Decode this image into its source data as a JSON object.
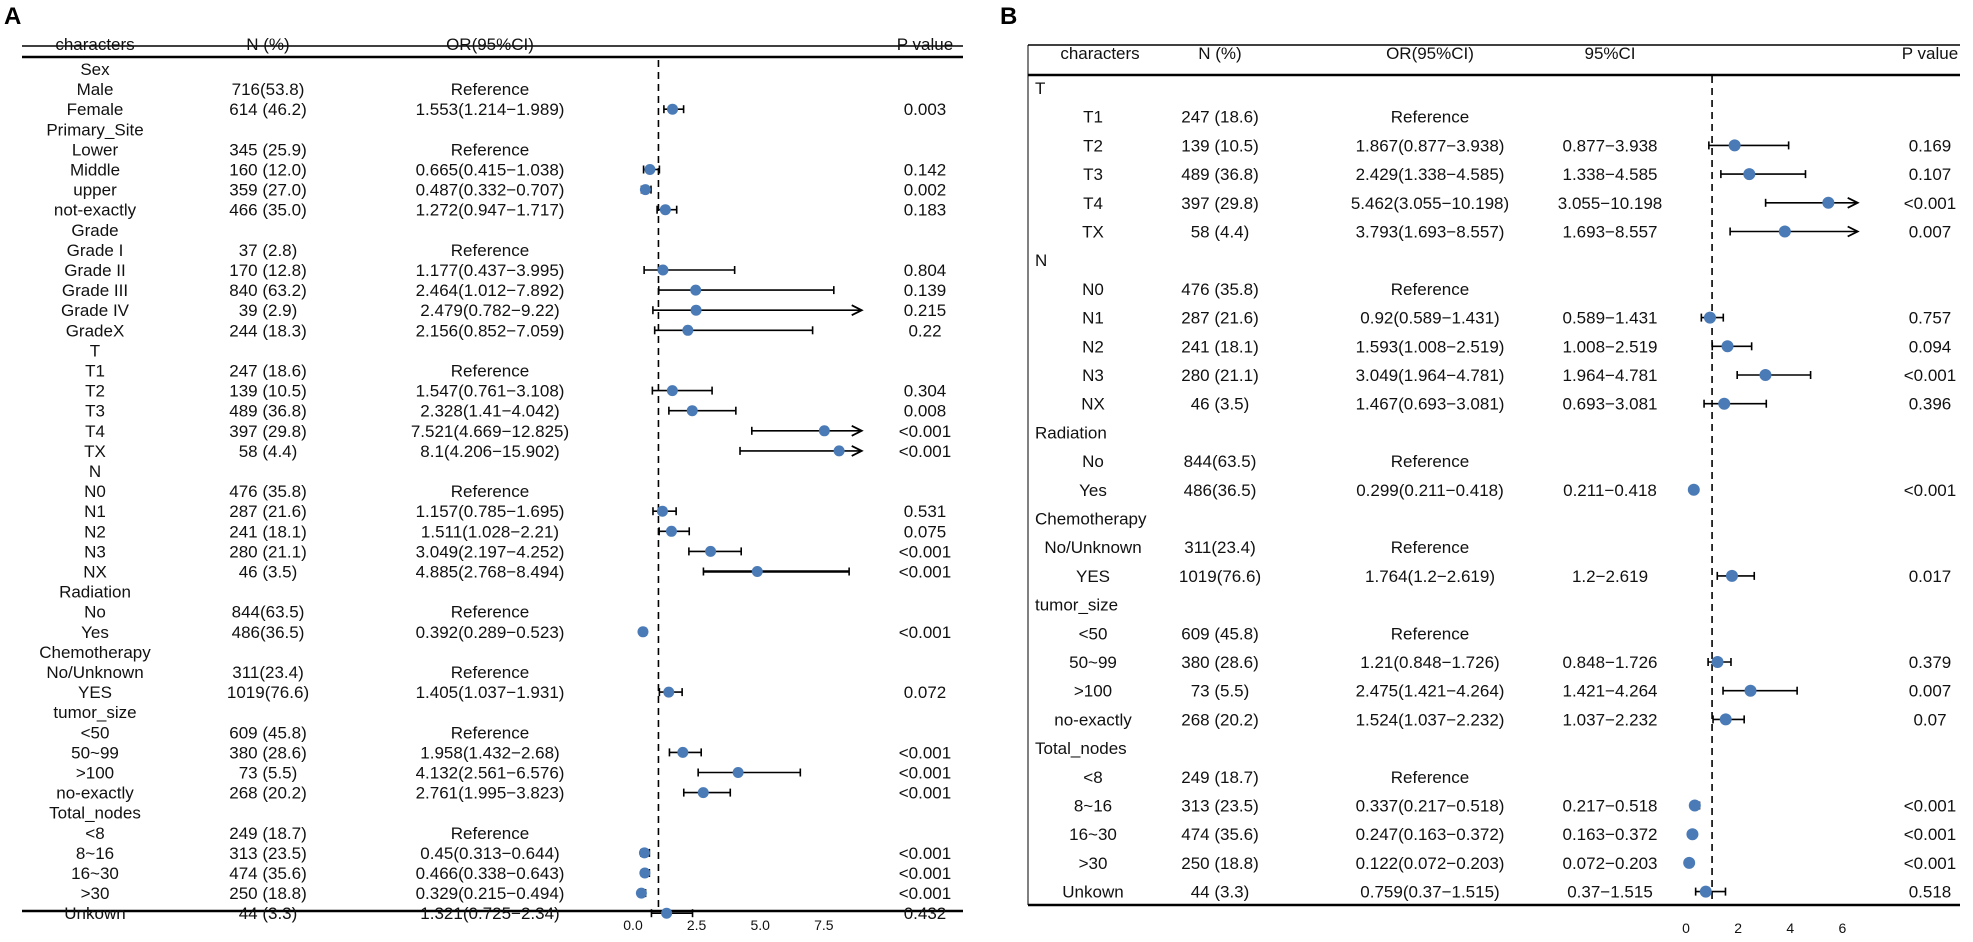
{
  "panels": [
    {
      "label": "A",
      "headers": [
        "characters",
        "N (%)",
        "OR(95%CI)",
        "P value"
      ],
      "axis_ticks": [
        "0.0",
        "2.5",
        "5.0",
        "7.5"
      ]
    },
    {
      "label": "B",
      "headers": [
        "characters",
        "N (%)",
        "OR(95%CI)",
        "95%CI",
        "P value"
      ],
      "axis_ticks": [
        "0",
        "2",
        "4",
        "6"
      ]
    }
  ],
  "chart_data": [
    {
      "type": "forest",
      "panel": "A",
      "xlim": [
        0,
        9
      ],
      "reference_line": 1,
      "rows": [
        {
          "label": "Sex",
          "group": true
        },
        {
          "label": "Male",
          "n": "716(53.8)",
          "or_text": "Reference"
        },
        {
          "label": "Female",
          "n": "614 (46.2)",
          "or_text": "1.553(1.214−1.989)",
          "or": 1.553,
          "lo": 1.214,
          "hi": 1.989,
          "p": "0.003"
        },
        {
          "label": "Primary_Site",
          "group": true
        },
        {
          "label": "Lower",
          "n": "345 (25.9)",
          "or_text": "Reference"
        },
        {
          "label": "Middle",
          "n": "160 (12.0)",
          "or_text": "0.665(0.415−1.038)",
          "or": 0.665,
          "lo": 0.415,
          "hi": 1.038,
          "p": "0.142"
        },
        {
          "label": "upper",
          "n": "359 (27.0)",
          "or_text": "0.487(0.332−0.707)",
          "or": 0.487,
          "lo": 0.332,
          "hi": 0.707,
          "p": "0.002"
        },
        {
          "label": "not-exactly",
          "n": "466 (35.0)",
          "or_text": "1.272(0.947−1.717)",
          "or": 1.272,
          "lo": 0.947,
          "hi": 1.717,
          "p": "0.183"
        },
        {
          "label": "Grade",
          "group": true
        },
        {
          "label": "Grade I",
          "n": "37 (2.8)",
          "or_text": "Reference"
        },
        {
          "label": "Grade II",
          "n": "170 (12.8)",
          "or_text": "1.177(0.437−3.995)",
          "or": 1.177,
          "lo": 0.437,
          "hi": 3.995,
          "p": "0.804"
        },
        {
          "label": "Grade III",
          "n": "840 (63.2)",
          "or_text": "2.464(1.012−7.892)",
          "or": 2.464,
          "lo": 1.012,
          "hi": 7.892,
          "p": "0.139"
        },
        {
          "label": "Grade IV",
          "n": "39 (2.9)",
          "or_text": "2.479(0.782−9.22)",
          "or": 2.479,
          "lo": 0.782,
          "hi": 9.22,
          "p": "0.215"
        },
        {
          "label": "GradeX",
          "n": "244 (18.3)",
          "or_text": "2.156(0.852−7.059)",
          "or": 2.156,
          "lo": 0.852,
          "hi": 7.059,
          "p": "0.22"
        },
        {
          "label": "T",
          "group": true
        },
        {
          "label": "T1",
          "n": "247 (18.6)",
          "or_text": "Reference"
        },
        {
          "label": "T2",
          "n": "139 (10.5)",
          "or_text": "1.547(0.761−3.108)",
          "or": 1.547,
          "lo": 0.761,
          "hi": 3.108,
          "p": "0.304"
        },
        {
          "label": "T3",
          "n": "489 (36.8)",
          "or_text": "2.328(1.41−4.042)",
          "or": 2.328,
          "lo": 1.41,
          "hi": 4.042,
          "p": "0.008"
        },
        {
          "label": "T4",
          "n": "397 (29.8)",
          "or_text": "7.521(4.669−12.825)",
          "or": 7.521,
          "lo": 4.669,
          "hi": 12.825,
          "p": "<0.001"
        },
        {
          "label": "TX",
          "n": "58 (4.4)",
          "or_text": "8.1(4.206−15.902)",
          "or": 8.1,
          "lo": 4.206,
          "hi": 15.902,
          "p": "<0.001"
        },
        {
          "label": "N",
          "group": true
        },
        {
          "label": "N0",
          "n": "476 (35.8)",
          "or_text": "Reference"
        },
        {
          "label": "N1",
          "n": "287 (21.6)",
          "or_text": "1.157(0.785−1.695)",
          "or": 1.157,
          "lo": 0.785,
          "hi": 1.695,
          "p": "0.531"
        },
        {
          "label": "N2",
          "n": "241 (18.1)",
          "or_text": "1.511(1.028−2.21)",
          "or": 1.511,
          "lo": 1.028,
          "hi": 2.21,
          "p": "0.075"
        },
        {
          "label": "N3",
          "n": "280 (21.1)",
          "or_text": "3.049(2.197−4.252)",
          "or": 3.049,
          "lo": 2.197,
          "hi": 4.252,
          "p": "<0.001"
        },
        {
          "label": "NX",
          "n": "46 (3.5)",
          "or_text": "4.885(2.768−8.494)",
          "or": 4.885,
          "lo": 2.768,
          "hi": 8.494,
          "p": "<0.001"
        },
        {
          "label": "Radiation",
          "group": true
        },
        {
          "label": "No",
          "n": "844(63.5)",
          "or_text": "Reference"
        },
        {
          "label": "Yes",
          "n": "486(36.5)",
          "or_text": "0.392(0.289−0.523)",
          "or": 0.392,
          "lo": 0.289,
          "hi": 0.523,
          "p": "<0.001"
        },
        {
          "label": "Chemotherapy",
          "group": true
        },
        {
          "label": "No/Unknown",
          "n": "311(23.4)",
          "or_text": "Reference"
        },
        {
          "label": "YES",
          "n": "1019(76.6)",
          "or_text": "1.405(1.037−1.931)",
          "or": 1.405,
          "lo": 1.037,
          "hi": 1.931,
          "p": "0.072"
        },
        {
          "label": "tumor_size",
          "group": true
        },
        {
          "label": "<50",
          "n": "609 (45.8)",
          "or_text": "Reference"
        },
        {
          "label": "50~99",
          "n": "380 (28.6)",
          "or_text": "1.958(1.432−2.68)",
          "or": 1.958,
          "lo": 1.432,
          "hi": 2.68,
          "p": "<0.001"
        },
        {
          "label": ">100",
          "n": "73 (5.5)",
          "or_text": "4.132(2.561−6.576)",
          "or": 4.132,
          "lo": 2.561,
          "hi": 6.576,
          "p": "<0.001"
        },
        {
          "label": "no-exactly",
          "n": "268 (20.2)",
          "or_text": "2.761(1.995−3.823)",
          "or": 2.761,
          "lo": 1.995,
          "hi": 3.823,
          "p": "<0.001"
        },
        {
          "label": "Total_nodes",
          "group": true
        },
        {
          "label": "<8",
          "n": "249 (18.7)",
          "or_text": "Reference"
        },
        {
          "label": "8~16",
          "n": "313 (23.5)",
          "or_text": "0.45(0.313−0.644)",
          "or": 0.45,
          "lo": 0.313,
          "hi": 0.644,
          "p": "<0.001"
        },
        {
          "label": "16~30",
          "n": "474 (35.6)",
          "or_text": "0.466(0.338−0.643)",
          "or": 0.466,
          "lo": 0.338,
          "hi": 0.643,
          "p": "<0.001"
        },
        {
          "label": ">30",
          "n": "250 (18.8)",
          "or_text": "0.329(0.215−0.494)",
          "or": 0.329,
          "lo": 0.215,
          "hi": 0.494,
          "p": "<0.001"
        },
        {
          "label": "Unkown",
          "n": "44 (3.3)",
          "or_text": "1.321(0.725−2.34)",
          "or": 1.321,
          "lo": 0.725,
          "hi": 2.34,
          "p": "0.432"
        }
      ]
    },
    {
      "type": "forest",
      "panel": "B",
      "xlim": [
        0,
        6.6
      ],
      "reference_line": 1,
      "rows": [
        {
          "label": "T",
          "group": true
        },
        {
          "label": "T1",
          "n": "247 (18.6)",
          "or_text": "Reference"
        },
        {
          "label": "T2",
          "n": "139 (10.5)",
          "or_text": "1.867(0.877−3.938)",
          "ci_text": "0.877−3.938",
          "or": 1.867,
          "lo": 0.877,
          "hi": 3.938,
          "p": "0.169"
        },
        {
          "label": "T3",
          "n": "489 (36.8)",
          "or_text": "2.429(1.338−4.585)",
          "ci_text": "1.338−4.585",
          "or": 2.429,
          "lo": 1.338,
          "hi": 4.585,
          "p": "0.107"
        },
        {
          "label": "T4",
          "n": "397 (29.8)",
          "or_text": "5.462(3.055−10.198)",
          "ci_text": "3.055−10.198",
          "or": 5.462,
          "lo": 3.055,
          "hi": 10.198,
          "p": "<0.001"
        },
        {
          "label": "TX",
          "n": "58 (4.4)",
          "or_text": "3.793(1.693−8.557)",
          "ci_text": "1.693−8.557",
          "or": 3.793,
          "lo": 1.693,
          "hi": 8.557,
          "p": "0.007"
        },
        {
          "label": "N",
          "group": true
        },
        {
          "label": "N0",
          "n": "476 (35.8)",
          "or_text": "Reference"
        },
        {
          "label": "N1",
          "n": "287 (21.6)",
          "or_text": "0.92(0.589−1.431)",
          "ci_text": "0.589−1.431",
          "or": 0.92,
          "lo": 0.589,
          "hi": 1.431,
          "p": "0.757"
        },
        {
          "label": "N2",
          "n": "241 (18.1)",
          "or_text": "1.593(1.008−2.519)",
          "ci_text": "1.008−2.519",
          "or": 1.593,
          "lo": 1.008,
          "hi": 2.519,
          "p": "0.094"
        },
        {
          "label": "N3",
          "n": "280 (21.1)",
          "or_text": "3.049(1.964−4.781)",
          "ci_text": "1.964−4.781",
          "or": 3.049,
          "lo": 1.964,
          "hi": 4.781,
          "p": "<0.001"
        },
        {
          "label": "NX",
          "n": "46 (3.5)",
          "or_text": "1.467(0.693−3.081)",
          "ci_text": "0.693−3.081",
          "or": 1.467,
          "lo": 0.693,
          "hi": 3.081,
          "p": "0.396"
        },
        {
          "label": "Radiation",
          "group": true
        },
        {
          "label": "No",
          "n": "844(63.5)",
          "or_text": "Reference"
        },
        {
          "label": "Yes",
          "n": "486(36.5)",
          "or_text": "0.299(0.211−0.418)",
          "ci_text": "0.211−0.418",
          "or": 0.299,
          "lo": 0.211,
          "hi": 0.418,
          "p": "<0.001"
        },
        {
          "label": "Chemotherapy",
          "group": true
        },
        {
          "label": "No/Unknown",
          "n": "311(23.4)",
          "or_text": "Reference"
        },
        {
          "label": "YES",
          "n": "1019(76.6)",
          "or_text": "1.764(1.2−2.619)",
          "ci_text": "1.2−2.619",
          "or": 1.764,
          "lo": 1.2,
          "hi": 2.619,
          "p": "0.017"
        },
        {
          "label": "tumor_size",
          "group": true
        },
        {
          "label": "<50",
          "n": "609 (45.8)",
          "or_text": "Reference"
        },
        {
          "label": "50~99",
          "n": "380 (28.6)",
          "or_text": "1.21(0.848−1.726)",
          "ci_text": "0.848−1.726",
          "or": 1.21,
          "lo": 0.848,
          "hi": 1.726,
          "p": "0.379"
        },
        {
          "label": ">100",
          "n": "73 (5.5)",
          "or_text": "2.475(1.421−4.264)",
          "ci_text": "1.421−4.264",
          "or": 2.475,
          "lo": 1.421,
          "hi": 4.264,
          "p": "0.007"
        },
        {
          "label": "no-exactly",
          "n": "268 (20.2)",
          "or_text": "1.524(1.037−2.232)",
          "ci_text": "1.037−2.232",
          "or": 1.524,
          "lo": 1.037,
          "hi": 2.232,
          "p": "0.07"
        },
        {
          "label": "Total_nodes",
          "group": true
        },
        {
          "label": "<8",
          "n": "249 (18.7)",
          "or_text": "Reference"
        },
        {
          "label": "8~16",
          "n": "313 (23.5)",
          "or_text": "0.337(0.217−0.518)",
          "ci_text": "0.217−0.518",
          "or": 0.337,
          "lo": 0.217,
          "hi": 0.518,
          "p": "<0.001"
        },
        {
          "label": "16~30",
          "n": "474 (35.6)",
          "or_text": "0.247(0.163−0.372)",
          "ci_text": "0.163−0.372",
          "or": 0.247,
          "lo": 0.163,
          "hi": 0.372,
          "p": "<0.001"
        },
        {
          "label": ">30",
          "n": "250 (18.8)",
          "or_text": "0.122(0.072−0.203)",
          "ci_text": "0.072−0.203",
          "or": 0.122,
          "lo": 0.072,
          "hi": 0.203,
          "p": "<0.001"
        },
        {
          "label": "Unkown",
          "n": "44 (3.3)",
          "or_text": "0.759(0.37−1.515)",
          "ci_text": "0.37−1.515",
          "or": 0.759,
          "lo": 0.37,
          "hi": 1.515,
          "p": "0.518"
        }
      ]
    }
  ],
  "colors": {
    "point": "#4a7bb7",
    "line": "#000000",
    "text": "#111111"
  }
}
